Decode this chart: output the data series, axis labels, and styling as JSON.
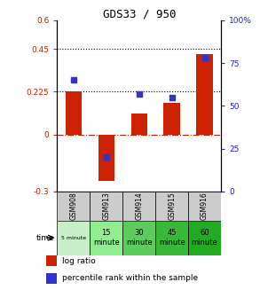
{
  "title": "GDS33 / 950",
  "categories": [
    "GSM908",
    "GSM913",
    "GSM914",
    "GSM915",
    "GSM916"
  ],
  "log_ratio": [
    0.225,
    -0.245,
    0.11,
    0.165,
    0.42
  ],
  "percentile_rank": [
    65,
    20,
    57,
    55,
    78
  ],
  "bar_color": "#cc2200",
  "dot_color": "#3333cc",
  "left_ylim": [
    -0.3,
    0.6
  ],
  "right_ylim": [
    0,
    100
  ],
  "left_yticks": [
    -0.3,
    0,
    0.225,
    0.45,
    0.6
  ],
  "left_ytick_labels": [
    "-0.3",
    "0",
    "0.225",
    "0.45",
    "0.6"
  ],
  "right_yticks": [
    0,
    25,
    50,
    75,
    100
  ],
  "right_ytick_labels": [
    "0",
    "25",
    "50",
    "75",
    "100%"
  ],
  "hlines_dotted": [
    0.225,
    0.45
  ],
  "hline_dashdot": 0.0,
  "time_labels": [
    "5 minute",
    "15\nminute",
    "30\nminute",
    "45\nminute",
    "60\nminute"
  ],
  "time_colors": [
    "#c8f0c8",
    "#90ee90",
    "#5ccc5c",
    "#38b838",
    "#22aa22"
  ],
  "gsm_bg": "#cccccc",
  "bg_color": "#ffffff"
}
